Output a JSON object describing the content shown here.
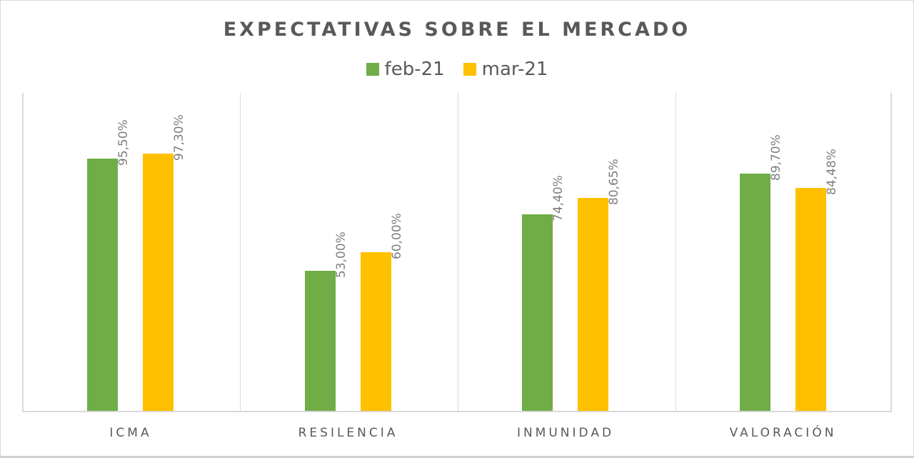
{
  "chart_data": {
    "type": "bar",
    "title": "EXPECTATIVAS SOBRE EL MERCADO",
    "categories": [
      "ICMA",
      "RESILENCIA",
      "INMUNIDAD",
      "VALORACIÓN"
    ],
    "series": [
      {
        "name": "feb-21",
        "color": "#70ad47",
        "values": [
          95.5,
          53.0,
          74.4,
          89.7
        ],
        "labels": [
          "95,50%",
          "53,00%",
          "74,40%",
          "89,70%"
        ]
      },
      {
        "name": "mar-21",
        "color": "#ffc000",
        "values": [
          97.3,
          60.0,
          80.65,
          84.48
        ],
        "labels": [
          "97,30%",
          "60,00%",
          "80,65%",
          "84,48%"
        ]
      }
    ],
    "xlabel": "",
    "ylabel": "",
    "ylim": [
      0,
      121
    ],
    "grid": false,
    "legend_position": "top"
  },
  "legend": [
    {
      "label": "feb-21",
      "color": "#70ad47"
    },
    {
      "label": "mar-21",
      "color": "#ffc000"
    }
  ]
}
